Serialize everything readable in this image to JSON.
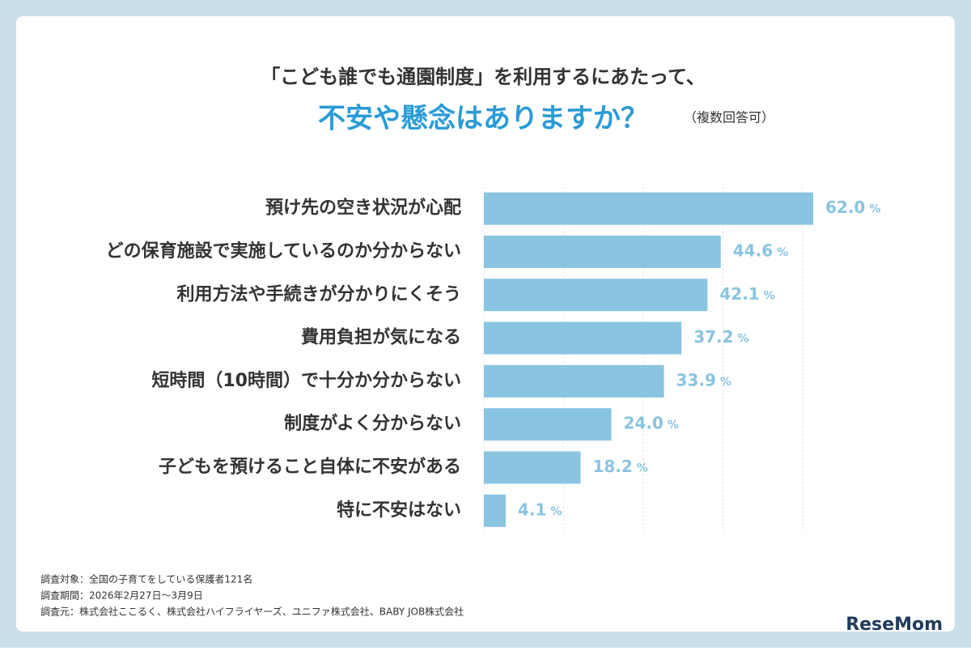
{
  "chart_data": {
    "type": "bar",
    "orientation": "horizontal",
    "title": "「こども誰でも通園制度」を利用するにあたって、",
    "subtitle": "不安や懸念はありますか？",
    "subtitle_note": "（複数回答可）",
    "categories": [
      "預け先の空き状況が心配",
      "どの保育施設で実施しているのか分からない",
      "利用方法や手続きが分かりにくそう",
      "費用負担が気になる",
      "短時間（10時間）で十分か分からない",
      "制度がよく分からない",
      "子どもを預けること自体に不安がある",
      "特に不安はない"
    ],
    "values": [
      62.0,
      44.6,
      42.1,
      37.2,
      33.9,
      24.0,
      18.2,
      4.1
    ],
    "value_labels": [
      "62.0",
      "44.6",
      "42.1",
      "37.2",
      "33.9",
      "24.0",
      "18.2",
      "4.1"
    ],
    "value_unit": "%",
    "color": "#89c4e1",
    "xlim": [
      0,
      62
    ],
    "xticks": [
      0,
      15,
      30,
      45,
      60
    ],
    "grid": true,
    "notes": [
      "調査対象：全国の子育てをしている保護者121名",
      "調査期間：2026年2月27日〜3月9日",
      "調査元：株式会社ここるく、株式会社ハイフライヤーズ、ユニファ株式会社、BABY JOB株式会社"
    ],
    "logo": "ReseMom"
  }
}
